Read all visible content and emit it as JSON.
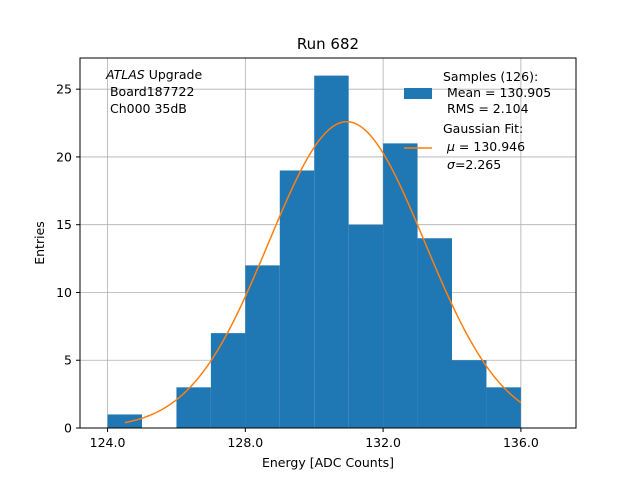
{
  "chart_data": {
    "type": "bar",
    "title": "Run 682",
    "xlabel": "Energy [ADC Counts]",
    "ylabel": "Entries",
    "xlim": [
      123.2,
      137.6
    ],
    "ylim": [
      0,
      27.3
    ],
    "x_ticks": [
      "124.0",
      "128.0",
      "132.0",
      "136.0"
    ],
    "y_ticks": [
      "0",
      "5",
      "10",
      "15",
      "20",
      "25"
    ],
    "grid": true,
    "bin_edges": [
      124,
      125,
      126,
      127,
      128,
      129,
      130,
      131,
      132,
      133,
      134,
      135,
      136
    ],
    "values": [
      1,
      0,
      3,
      7,
      12,
      19,
      26,
      15,
      21,
      14,
      5,
      3
    ],
    "bar_color": "#1f77b4",
    "fit_color": "#ff7f0e",
    "fit": {
      "type": "gaussian",
      "mu": 130.946,
      "sigma": 2.265,
      "amplitude": 22.6,
      "x_range": [
        124.5,
        136.0
      ]
    },
    "annotation": {
      "prefix": "ATLAS",
      "line1_rest": " Upgrade",
      "line2": " Board187722",
      "line3": " Ch000 35dB"
    },
    "legend": {
      "placement": "top-right",
      "samples": {
        "line1": "Samples (126):",
        "line2": " Mean = 130.905",
        "line3": " RMS = 2.104"
      },
      "fit": {
        "line1": "Gaussian Fit:",
        "mu_sym": "μ",
        "mu_rest": " = 130.946",
        "sigma_sym": "σ",
        "sigma_rest": "=2.265"
      }
    }
  }
}
